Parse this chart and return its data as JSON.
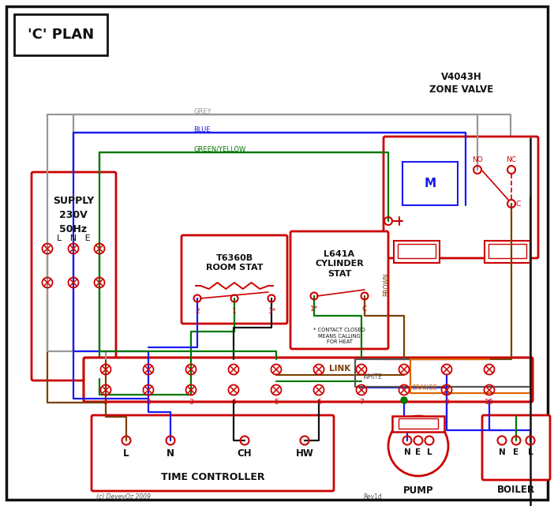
{
  "bg": "#ffffff",
  "red": "#cc0000",
  "blue": "#1a1aee",
  "green": "#007700",
  "black": "#111111",
  "brown": "#7B3F00",
  "grey": "#999999",
  "orange": "#dd6600",
  "gy": "#007700",
  "white_wire": "#555555",
  "title": "'C' PLAN",
  "supply": "SUPPLY\n230V\n50Hz",
  "zone_valve": "V4043H\nZONE VALVE",
  "room_stat_title": "T6360B\nROOM STAT",
  "cyl_stat_title": "L641A\nCYLINDER\nSTAT",
  "time_ctrl": "TIME CONTROLLER",
  "pump": "PUMP",
  "boiler": "BOILER",
  "link": "LINK",
  "footnote": "(c) DeveyOz 2009",
  "rev": "Rev1d",
  "contact_note": "* CONTACT CLOSED\nMEANS CALLING\nFOR HEAT"
}
